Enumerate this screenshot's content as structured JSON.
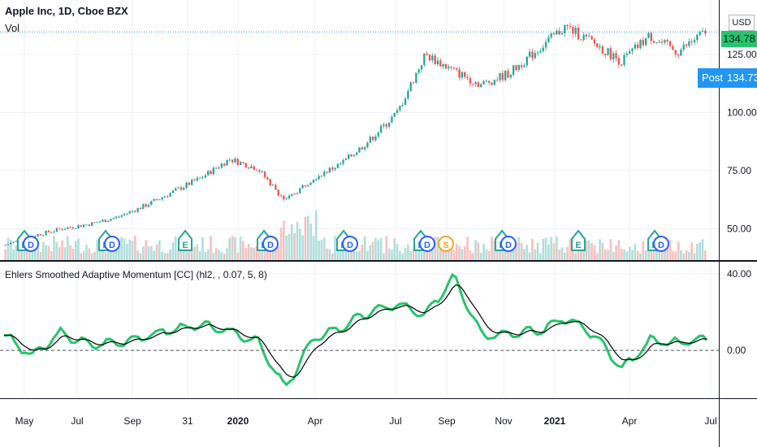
{
  "header": {
    "symbol": "Apple Inc, 1D, Cboe BZX",
    "volume_label": "Vol",
    "indicator_label": "Ehlers Smoothed Adaptive Momentum [CC] (hl2, , 0.07, 5, 8)"
  },
  "price_scale": {
    "currency": "USD",
    "last_price": "134.78",
    "post_label": "Post",
    "post_price": "134.73",
    "colors": {
      "last": "#26c46c",
      "post": "#2196f3",
      "up": "#26a69a",
      "down": "#ef5350"
    }
  },
  "chart_data": [
    {
      "type": "candlestick",
      "title": "Apple Inc, 1D, Cboe BZX",
      "x": [
        "2019-05",
        "2019-06",
        "2019-07",
        "2019-08",
        "2019-09",
        "2019-10",
        "2019-11",
        "2019-12",
        "2020-01",
        "2020-02",
        "2020-03",
        "2020-04",
        "2020-05",
        "2020-06",
        "2020-07",
        "2020-08",
        "2020-09",
        "2020-10",
        "2020-11",
        "2020-12",
        "2021-01",
        "2021-02",
        "2021-03",
        "2021-04",
        "2021-05",
        "2021-06"
      ],
      "close": [
        43,
        47,
        50,
        52,
        55,
        60,
        66,
        72,
        80,
        76,
        62,
        72,
        78,
        88,
        100,
        125,
        118,
        112,
        117,
        127,
        137,
        130,
        122,
        133,
        126,
        134.78
      ],
      "ylim": [
        40,
        145
      ],
      "y_ticks": [
        "50.00",
        "75.00",
        "100.00",
        "125.00"
      ],
      "x_ticks": [
        "May",
        "Jul",
        "Sep",
        "31",
        "2020",
        "Apr",
        "Jul",
        "Sep",
        "Nov",
        "2021",
        "Apr",
        "Jul"
      ],
      "earnings_markers": [
        "E",
        "D",
        "E",
        "D",
        "E",
        "E",
        "D",
        "E",
        "D",
        "E",
        "D",
        "S",
        "E",
        "D",
        "E",
        "E",
        "D"
      ]
    },
    {
      "type": "line",
      "title": "Ehlers Smoothed Adaptive Momentum [CC] (hl2, , 0.07, 5, 8)",
      "series": [
        {
          "name": "",
          "color": "#26c46c"
        },
        {
          "name": "",
          "color": "#000000"
        }
      ],
      "x": [
        "2019-05",
        "2019-06",
        "2019-07",
        "2019-08",
        "2019-09",
        "2019-10",
        "2019-11",
        "2019-12",
        "2020-01",
        "2020-02",
        "2020-03",
        "2020-04",
        "2020-05",
        "2020-06",
        "2020-07",
        "2020-08",
        "2020-09",
        "2020-10",
        "2020-11",
        "2020-12",
        "2021-01",
        "2021-02",
        "2021-03",
        "2021-04",
        "2021-05",
        "2021-06"
      ],
      "values": [
        8,
        -3,
        9,
        3,
        4,
        7,
        11,
        13,
        10,
        5,
        -20,
        6,
        12,
        20,
        24,
        18,
        39,
        8,
        9,
        10,
        17,
        8,
        -10,
        5,
        4,
        6
      ],
      "ylim": [
        -25,
        45
      ],
      "y_ticks": [
        "40.00",
        "0.00"
      ],
      "zero_line": "dashed"
    }
  ]
}
